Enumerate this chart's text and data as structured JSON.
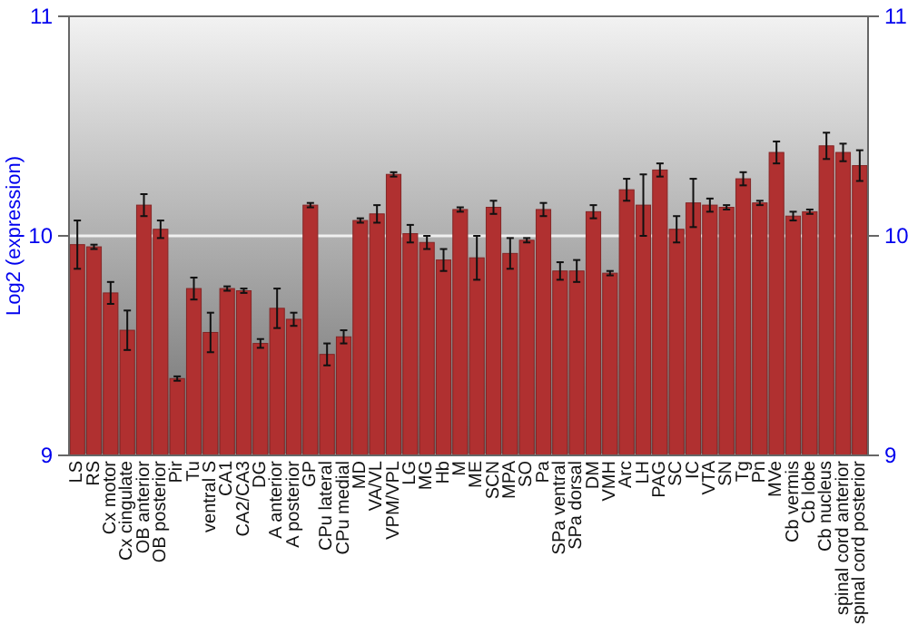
{
  "chart_data": {
    "type": "bar",
    "ylabel": "Log2 (expression)",
    "categories": [
      "LS",
      "RS",
      "Cx motor",
      "Cx cingulate",
      "OB anterior",
      "OB posterior",
      "Pir",
      "Tu",
      "ventral S",
      "CA1",
      "CA2/CA3",
      "DG",
      "A anterior",
      "A posterior",
      "GP",
      "CPu lateral",
      "CPu medial",
      "MD",
      "VA/VL",
      "VPM/VPL",
      "LG",
      "MG",
      "Hb",
      "M",
      "ME",
      "SCN",
      "MPA",
      "SO",
      "Pa",
      "SPa ventral",
      "SPa dorsal",
      "DM",
      "VMH",
      "Arc",
      "LH",
      "PAG",
      "SC",
      "IC",
      "VTA",
      "SN",
      "Tg",
      "Pn",
      "MVe",
      "Cb vermis",
      "Cb lobe",
      "Cb nucleus",
      "spinal cord anterior",
      "spinal cord posterior"
    ],
    "values": [
      9.96,
      9.95,
      9.74,
      9.57,
      10.14,
      10.03,
      9.35,
      9.76,
      9.56,
      9.76,
      9.75,
      9.51,
      9.67,
      9.62,
      10.14,
      9.46,
      9.54,
      10.07,
      10.1,
      10.28,
      10.01,
      9.97,
      9.89,
      10.12,
      9.9,
      10.13,
      9.92,
      9.98,
      10.12,
      9.84,
      9.84,
      10.11,
      9.83,
      10.21,
      10.14,
      10.3,
      10.03,
      10.15,
      10.14,
      10.13,
      10.26,
      10.15,
      10.38,
      10.09,
      10.11,
      10.41,
      10.38,
      10.32
    ],
    "errors": [
      0.11,
      0.01,
      0.05,
      0.09,
      0.05,
      0.04,
      0.01,
      0.05,
      0.09,
      0.01,
      0.01,
      0.02,
      0.09,
      0.03,
      0.01,
      0.05,
      0.03,
      0.01,
      0.04,
      0.01,
      0.04,
      0.03,
      0.05,
      0.01,
      0.1,
      0.03,
      0.07,
      0.01,
      0.03,
      0.04,
      0.05,
      0.03,
      0.01,
      0.05,
      0.14,
      0.03,
      0.06,
      0.11,
      0.03,
      0.01,
      0.03,
      0.01,
      0.05,
      0.02,
      0.01,
      0.06,
      0.04,
      0.07
    ],
    "color": "#b03030",
    "ylim": [
      9,
      11
    ],
    "yticks": [
      9,
      10,
      11
    ],
    "y2lim": [
      9,
      11
    ],
    "y2ticks": [
      9,
      10,
      11
    ],
    "grid": "y"
  }
}
